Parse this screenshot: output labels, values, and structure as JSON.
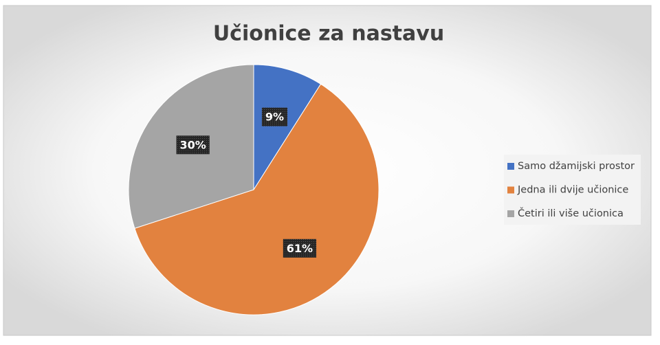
{
  "chart_data": {
    "type": "pie",
    "title": "Učionice za nastavu",
    "categories": [
      "Samo džamijski prostor",
      "Jedna ili dvije učionice",
      "Četiri ili više učionica"
    ],
    "values": [
      9,
      61,
      30
    ],
    "value_labels": [
      "9%",
      "61%",
      "30%"
    ],
    "colors": [
      "#4472c4",
      "#e2823f",
      "#a5a5a5"
    ],
    "legend": "right"
  }
}
